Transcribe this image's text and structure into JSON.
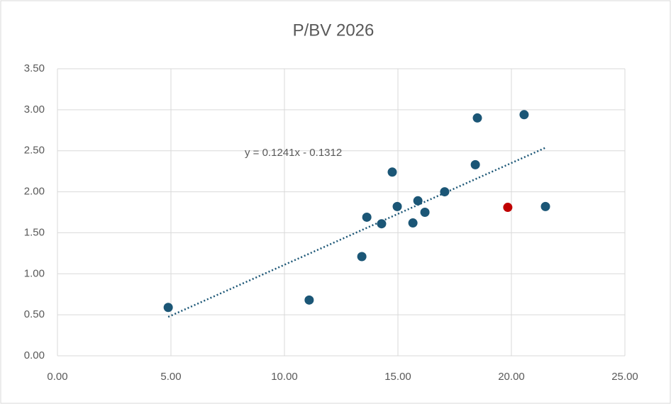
{
  "chart_data": {
    "type": "scatter",
    "title": "P/BV 2026",
    "series": [
      {
        "color": "#1b5676",
        "x": [
          4.88,
          11.09,
          13.41,
          13.63,
          14.28,
          14.75,
          14.97,
          15.66,
          15.88,
          16.19,
          17.06,
          18.41,
          18.5,
          20.56,
          21.5
        ],
        "y": [
          0.59,
          0.68,
          1.21,
          1.69,
          1.61,
          2.24,
          1.82,
          1.62,
          1.89,
          1.75,
          2.0,
          2.33,
          2.9,
          2.94,
          1.82
        ]
      },
      {
        "color": "#c00000",
        "x": [
          19.84
        ],
        "y": [
          1.81
        ]
      }
    ],
    "trendline": {
      "slope": 0.1241,
      "intercept": -0.1312,
      "label": "y = 0.1241x - 0.1312",
      "color": "#1b5676"
    },
    "xlim": [
      0,
      25
    ],
    "xticks": [
      {
        "value": 0,
        "label": "0.00"
      },
      {
        "value": 5,
        "label": "5.00"
      },
      {
        "value": 10,
        "label": "10.00"
      },
      {
        "value": 15,
        "label": "15.00"
      },
      {
        "value": 20,
        "label": "20.00"
      },
      {
        "value": 25,
        "label": "25.00"
      }
    ],
    "ylim": [
      0,
      3.5
    ],
    "yticks": [
      {
        "value": 0,
        "label": "0.00"
      },
      {
        "value": 0.5,
        "label": "0.50"
      },
      {
        "value": 1,
        "label": "1.00"
      },
      {
        "value": 1.5,
        "label": "1.50"
      },
      {
        "value": 2,
        "label": "2.00"
      },
      {
        "value": 2.5,
        "label": "2.50"
      },
      {
        "value": 3,
        "label": "3.00"
      },
      {
        "value": 3.5,
        "label": "3.50"
      }
    ],
    "grid": true
  }
}
